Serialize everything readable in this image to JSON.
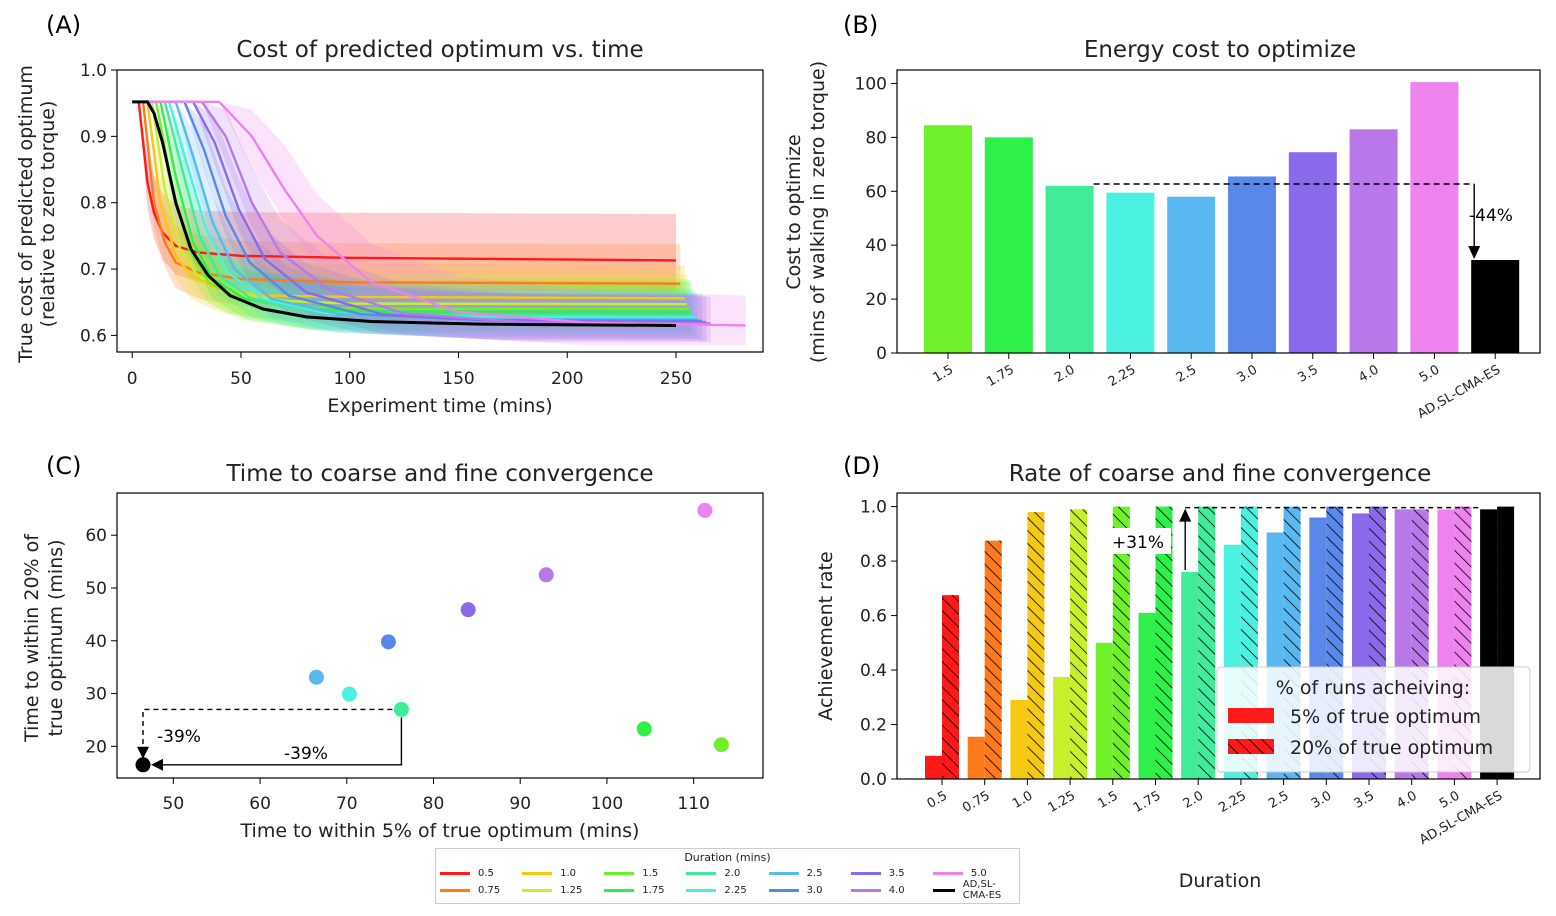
{
  "colors": {
    "0.5": "#ff1a1a",
    "0.75": "#ff7a1a",
    "1.0": "#f5c814",
    "1.25": "#c8f02a",
    "1.5": "#70f02a",
    "1.75": "#2ef048",
    "2.0": "#40eb9a",
    "2.25": "#4af0e0",
    "2.5": "#5ab8f0",
    "3.0": "#5a88ea",
    "3.5": "#8a6aea",
    "4.0": "#b878ea",
    "5.0": "#ee82ee",
    "AD,SL-CMA-ES": "#000000"
  },
  "panel_labels": [
    "(A)",
    "(B)",
    "(C)",
    "(D)"
  ],
  "chart_data": [
    {
      "id": "A",
      "type": "line",
      "title": "Cost of predicted optimum vs. time",
      "xlabel": "Experiment time (mins)",
      "ylabel_lines": [
        "True cost of predicted optimum",
        "(relative to zero torque)"
      ],
      "xlim": [
        -7,
        290
      ],
      "ylim": [
        0.575,
        1.0
      ],
      "xticks": [
        0,
        50,
        100,
        150,
        200,
        250
      ],
      "yticks": [
        0.6,
        0.7,
        0.8,
        0.9,
        1.0
      ],
      "start_value": 0.952,
      "series": [
        {
          "name": "0.5",
          "x": [
            0,
            3,
            7,
            10,
            14,
            20,
            30,
            50,
            100,
            250
          ],
          "y": [
            0.952,
            0.952,
            0.83,
            0.785,
            0.755,
            0.735,
            0.725,
            0.72,
            0.717,
            0.713
          ],
          "band": [
            0.05,
            0.07
          ]
        },
        {
          "name": "0.75",
          "x": [
            0,
            5,
            10,
            15,
            20,
            30,
            50,
            100,
            252
          ],
          "y": [
            0.952,
            0.952,
            0.8,
            0.74,
            0.71,
            0.695,
            0.685,
            0.68,
            0.678
          ],
          "band": [
            0.05,
            0.06
          ]
        },
        {
          "name": "1.0",
          "x": [
            0,
            7,
            13,
            20,
            27,
            40,
            60,
            100,
            254
          ],
          "y": [
            0.952,
            0.952,
            0.8,
            0.72,
            0.69,
            0.67,
            0.66,
            0.658,
            0.656
          ],
          "band": [
            0.05,
            0.05
          ]
        },
        {
          "name": "1.25",
          "x": [
            0,
            9,
            15,
            22,
            30,
            45,
            70,
            100,
            255
          ],
          "y": [
            0.952,
            0.952,
            0.82,
            0.73,
            0.69,
            0.665,
            0.652,
            0.648,
            0.647
          ],
          "band": [
            0.045,
            0.045
          ]
        },
        {
          "name": "1.5",
          "x": [
            0,
            11,
            18,
            26,
            35,
            50,
            80,
            120,
            256
          ],
          "y": [
            0.952,
            0.952,
            0.83,
            0.73,
            0.68,
            0.655,
            0.642,
            0.64,
            0.64
          ],
          "band": [
            0.045,
            0.045
          ]
        },
        {
          "name": "1.75",
          "x": [
            0,
            13,
            20,
            28,
            37,
            52,
            80,
            120,
            257
          ],
          "y": [
            0.952,
            0.952,
            0.84,
            0.74,
            0.685,
            0.655,
            0.64,
            0.636,
            0.636
          ],
          "band": [
            0.04,
            0.045
          ]
        },
        {
          "name": "2.0",
          "x": [
            0,
            15,
            23,
            31,
            40,
            55,
            85,
            130,
            258
          ],
          "y": [
            0.952,
            0.952,
            0.85,
            0.75,
            0.69,
            0.655,
            0.635,
            0.631,
            0.63
          ],
          "band": [
            0.04,
            0.04
          ]
        },
        {
          "name": "2.25",
          "x": [
            0,
            17,
            25,
            34,
            44,
            60,
            90,
            140,
            259
          ],
          "y": [
            0.952,
            0.952,
            0.86,
            0.76,
            0.695,
            0.655,
            0.633,
            0.628,
            0.627
          ],
          "band": [
            0.04,
            0.04
          ]
        },
        {
          "name": "2.5",
          "x": [
            0,
            20,
            28,
            37,
            47,
            64,
            95,
            150,
            260
          ],
          "y": [
            0.952,
            0.952,
            0.87,
            0.77,
            0.7,
            0.655,
            0.632,
            0.625,
            0.624
          ],
          "band": [
            0.04,
            0.04
          ]
        },
        {
          "name": "3.0",
          "x": [
            0,
            24,
            33,
            43,
            54,
            72,
            105,
            160,
            262
          ],
          "y": [
            0.952,
            0.952,
            0.88,
            0.78,
            0.71,
            0.66,
            0.632,
            0.623,
            0.622
          ],
          "band": [
            0.045,
            0.04
          ]
        },
        {
          "name": "3.5",
          "x": [
            0,
            28,
            38,
            49,
            61,
            80,
            115,
            170,
            264
          ],
          "y": [
            0.952,
            0.952,
            0.89,
            0.79,
            0.715,
            0.665,
            0.632,
            0.622,
            0.62
          ],
          "band": [
            0.05,
            0.04
          ]
        },
        {
          "name": "4.0",
          "x": [
            0,
            32,
            43,
            55,
            68,
            90,
            125,
            180,
            266
          ],
          "y": [
            0.952,
            0.952,
            0.9,
            0.8,
            0.725,
            0.67,
            0.633,
            0.62,
            0.618
          ],
          "band": [
            0.06,
            0.04
          ]
        },
        {
          "name": "5.0",
          "x": [
            0,
            40,
            55,
            70,
            85,
            110,
            150,
            210,
            282
          ],
          "y": [
            0.952,
            0.952,
            0.9,
            0.82,
            0.75,
            0.68,
            0.635,
            0.619,
            0.615
          ],
          "band": [
            0.08,
            0.045
          ]
        },
        {
          "name": "AD,SL-CMA-ES",
          "x": [
            0,
            7,
            10,
            14,
            20,
            27,
            35,
            45,
            60,
            80,
            110,
            160,
            250
          ],
          "y": [
            0.952,
            0.952,
            0.935,
            0.89,
            0.8,
            0.73,
            0.69,
            0.66,
            0.64,
            0.628,
            0.621,
            0.617,
            0.615
          ]
        }
      ]
    },
    {
      "id": "B",
      "type": "bar",
      "title": "Energy cost to optimize",
      "ylabel_lines": [
        "Cost to optimize",
        "(mins of walking in zero torque)"
      ],
      "ylim": [
        0,
        105
      ],
      "yticks": [
        0,
        20,
        40,
        60,
        80,
        100
      ],
      "categories": [
        "1.5",
        "1.75",
        "2.0",
        "2.25",
        "2.5",
        "3.0",
        "3.5",
        "4.0",
        "5.0",
        "AD,SL-CMA-ES"
      ],
      "values": [
        84.5,
        80,
        62,
        59.5,
        58,
        65.5,
        74.5,
        83,
        100.5,
        34.5
      ],
      "annotation": "-44%"
    },
    {
      "id": "C",
      "type": "scatter",
      "title": "Time to coarse and fine convergence",
      "xlabel": "Time to within 5% of true optimum (mins)",
      "ylabel_lines": [
        "Time to within 20% of",
        "true optimum (mins)"
      ],
      "xlim": [
        43.5,
        118
      ],
      "ylim": [
        14,
        68
      ],
      "xticks": [
        50,
        60,
        70,
        80,
        90,
        100,
        110
      ],
      "yticks": [
        20,
        30,
        40,
        50,
        60
      ],
      "points": [
        {
          "name": "1.5",
          "x": 113.2,
          "y": 20.3
        },
        {
          "name": "1.75",
          "x": 104.3,
          "y": 23.3
        },
        {
          "name": "2.0",
          "x": 76.3,
          "y": 27.0
        },
        {
          "name": "2.25",
          "x": 70.3,
          "y": 29.9
        },
        {
          "name": "2.5",
          "x": 66.5,
          "y": 33.1
        },
        {
          "name": "3.0",
          "x": 74.8,
          "y": 39.8
        },
        {
          "name": "3.5",
          "x": 84.0,
          "y": 45.9
        },
        {
          "name": "4.0",
          "x": 93.0,
          "y": 52.5
        },
        {
          "name": "5.0",
          "x": 111.3,
          "y": 64.7
        },
        {
          "name": "AD,SL-CMA-ES",
          "x": 46.5,
          "y": 16.5
        }
      ],
      "annotations": [
        "-39%",
        "-39%"
      ]
    },
    {
      "id": "D",
      "type": "bar",
      "title": "Rate of coarse and fine convergence",
      "xlabel": "Duration",
      "ylabel": "Achievement rate",
      "ylim": [
        0,
        1.05
      ],
      "yticks": [
        0.0,
        0.2,
        0.4,
        0.6,
        0.8,
        1.0
      ],
      "categories": [
        "0.5",
        "0.75",
        "1.0",
        "1.25",
        "1.5",
        "1.75",
        "2.0",
        "2.25",
        "2.5",
        "3.0",
        "3.5",
        "4.0",
        "5.0",
        "AD,SL-CMA-ES"
      ],
      "series": [
        {
          "name": "5% of true optimum",
          "values": [
            0.085,
            0.155,
            0.29,
            0.375,
            0.5,
            0.61,
            0.76,
            0.86,
            0.905,
            0.96,
            0.975,
            0.99,
            0.99,
            0.99
          ]
        },
        {
          "name": "20% of true optimum",
          "values": [
            0.675,
            0.875,
            0.98,
            0.99,
            1.0,
            1.0,
            1.0,
            1.0,
            1.0,
            1.0,
            1.0,
            0.99,
            1.0,
            1.0
          ]
        }
      ],
      "legend_title": "% of runs acheiving:",
      "annotation": "+31%"
    }
  ],
  "duration_legend": {
    "title": "Duration (mins)",
    "items": [
      "0.5",
      "1.0",
      "1.5",
      "2.0",
      "2.5",
      "3.5",
      "5.0",
      "0.75",
      "1.25",
      "1.75",
      "2.25",
      "3.0",
      "4.0",
      "AD,SL-CMA-ES"
    ]
  }
}
